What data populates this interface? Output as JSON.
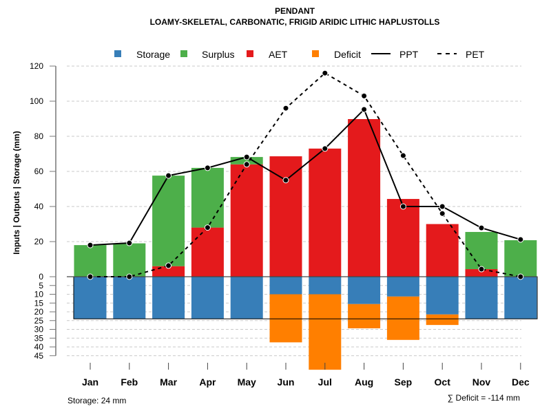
{
  "chart_data": {
    "type": "bar",
    "title": "PENDANT",
    "subtitle": "LOAMY-SKELETAL, CARBONATIC, FRIGID ARIDIC LITHIC HAPLUSTOLLS",
    "ylabel": "Inputs | Outputs | Storage    (mm)",
    "xlabel": "",
    "ylim_upper": [
      0,
      120
    ],
    "ylim_lower": [
      0,
      45
    ],
    "upper_ticks": [
      "0",
      "20",
      "40",
      "60",
      "80",
      "100",
      "120"
    ],
    "lower_ticks": [
      "5",
      "10",
      "15",
      "20",
      "25",
      "30",
      "35",
      "40",
      "45"
    ],
    "grid": true,
    "legend_position": "top",
    "categories": [
      "Jan",
      "Feb",
      "Mar",
      "Apr",
      "May",
      "Jun",
      "Jul",
      "Aug",
      "Sep",
      "Oct",
      "Nov",
      "Dec"
    ],
    "series": [
      {
        "name": "Storage",
        "kind": "bar",
        "color": "#377EB8",
        "values": [
          24,
          24,
          24,
          24,
          24,
          10,
          10,
          15.6,
          11.3,
          21.5,
          24,
          24
        ]
      },
      {
        "name": "Surplus",
        "kind": "bar",
        "color": "#4DAF4A",
        "values": [
          18,
          19,
          51.6,
          34,
          4.2,
          0,
          0,
          0,
          0,
          0,
          21.2,
          20.8
        ]
      },
      {
        "name": "AET",
        "kind": "bar",
        "color": "#E41A1C",
        "values": [
          0,
          0,
          6,
          28,
          64,
          68.6,
          73,
          89.8,
          44.3,
          30,
          4.3,
          0
        ]
      },
      {
        "name": "Deficit",
        "kind": "bar",
        "color": "#FF7F00",
        "values": [
          0,
          0,
          0,
          0,
          0,
          27.4,
          43,
          13.8,
          24.7,
          6,
          0,
          0
        ]
      },
      {
        "name": "PPT",
        "kind": "line",
        "color": "#000000",
        "values": [
          18,
          19.2,
          57.6,
          62,
          68.2,
          55,
          73,
          95.3,
          40,
          40,
          27.8,
          21.2
        ]
      },
      {
        "name": "PET",
        "kind": "dashed-line",
        "color": "#000000",
        "values": [
          0,
          0,
          6.3,
          28,
          64,
          96,
          116,
          103,
          69,
          36,
          4.3,
          0
        ]
      }
    ],
    "storage_capacity": 24,
    "footer_left": "Storage: 24 mm",
    "footer_right": "∑ Deficit = -114 mm"
  }
}
